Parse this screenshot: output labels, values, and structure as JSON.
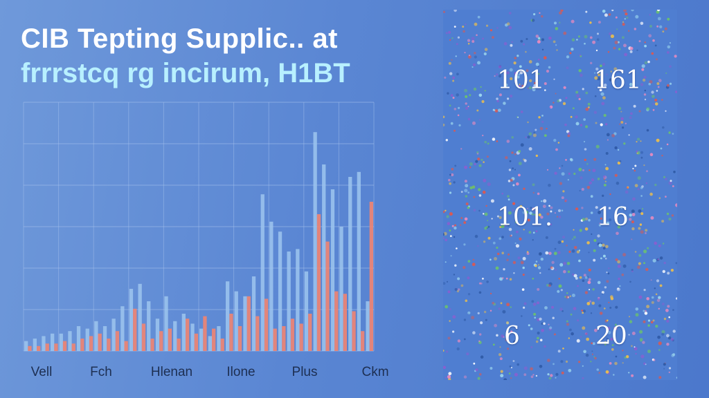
{
  "header": {
    "title": "CIB Tepting Supplic.. at",
    "subtitle": "frrrstcq rg incirum, H1BT"
  },
  "chart_data": {
    "type": "bar",
    "title": "CIB Tepting Supplic.. at",
    "subtitle": "frrrstcq rg incirum, H1BT",
    "x_tick_labels": [
      "Vell",
      "Fch",
      "Hlenan",
      "Ilone",
      "Plus",
      "Ckm"
    ],
    "grid": true,
    "ylim": [
      0,
      100
    ],
    "series": [
      {
        "color": "#9ec6ef",
        "values": [
          4,
          5,
          6,
          7,
          7,
          8,
          10,
          9,
          12,
          10,
          13,
          18,
          25,
          27,
          20,
          13,
          22,
          12,
          15,
          11,
          9,
          6,
          10,
          28,
          24,
          22,
          30,
          63,
          52,
          48,
          40,
          41,
          32,
          88,
          75,
          65,
          50,
          70,
          72,
          20
        ]
      },
      {
        "color": "#ee8473",
        "values": [
          2,
          2,
          3,
          3,
          4,
          3,
          5,
          6,
          7,
          5,
          8,
          4,
          17,
          11,
          5,
          8,
          9,
          5,
          13,
          7,
          14,
          9,
          5,
          15,
          10,
          22,
          14,
          21,
          9,
          10,
          13,
          11,
          15,
          55,
          44,
          24,
          23,
          16,
          8,
          60
        ]
      }
    ]
  },
  "side_panel": {
    "dot_colors": [
      "#e2574c",
      "#f0c04a",
      "#6cc46a",
      "#9fdaf0",
      "#e98bbf",
      "#8a5fd0",
      "#ffffff",
      "#2f5aa6"
    ],
    "numbers": [
      "101",
      "161",
      "101.",
      "16",
      "6",
      "20"
    ]
  }
}
